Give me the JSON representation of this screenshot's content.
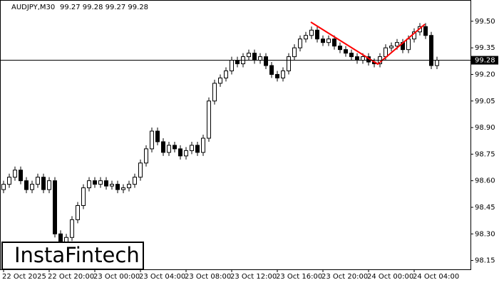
{
  "chart_data": {
    "type": "candlestick",
    "symbol": "AUDJPY,M30",
    "quote": "99.27 99.28 99.27 99.28",
    "brand": "InstaFintech",
    "categories": [
      "22 Oct 2025",
      null,
      null,
      null,
      null,
      null,
      null,
      null,
      "22 Oct 20:00",
      null,
      null,
      null,
      null,
      null,
      null,
      null,
      "23 Oct 00:00",
      null,
      null,
      null,
      null,
      null,
      null,
      null,
      "23 Oct 04:00",
      null,
      null,
      null,
      null,
      null,
      null,
      null,
      "23 Oct 08:00",
      null,
      null,
      null,
      null,
      null,
      null,
      null,
      "23 Oct 12:00",
      null,
      null,
      null,
      null,
      null,
      null,
      null,
      "23 Oct 16:00",
      null,
      null,
      null,
      null,
      null,
      null,
      null,
      "23 Oct 20:00",
      null,
      null,
      null,
      null,
      null,
      null,
      null,
      "24 Oct 00:00",
      null,
      null,
      null,
      null,
      null,
      null,
      null,
      "24 Oct 04:00",
      null,
      null,
      null,
      null
    ],
    "open": [
      98.55,
      98.58,
      98.62,
      98.66,
      98.6,
      98.55,
      98.58,
      98.62,
      98.55,
      98.6,
      98.3,
      98.22,
      98.28,
      98.38,
      98.46,
      98.56,
      98.6,
      98.58,
      98.6,
      98.57,
      98.58,
      98.55,
      98.56,
      98.58,
      98.62,
      98.7,
      98.78,
      98.88,
      98.82,
      98.76,
      98.8,
      98.78,
      98.74,
      98.77,
      98.8,
      98.76,
      98.84,
      99.05,
      99.15,
      99.18,
      99.22,
      99.28,
      99.26,
      99.3,
      99.32,
      99.28,
      99.3,
      99.25,
      99.2,
      99.18,
      99.22,
      99.3,
      99.35,
      99.4,
      99.42,
      99.45,
      99.4,
      99.38,
      99.4,
      99.36,
      99.34,
      99.32,
      99.3,
      99.28,
      99.3,
      99.27,
      99.26,
      99.3,
      99.35,
      99.36,
      99.38,
      99.34,
      99.4,
      99.44,
      99.47,
      99.42,
      99.25
    ],
    "high": [
      98.6,
      98.64,
      98.68,
      98.68,
      98.62,
      98.6,
      98.64,
      98.64,
      98.62,
      98.62,
      98.32,
      98.3,
      98.4,
      98.48,
      98.58,
      98.62,
      98.62,
      98.62,
      98.62,
      98.6,
      98.6,
      98.58,
      98.6,
      98.64,
      98.72,
      98.8,
      98.9,
      98.9,
      98.84,
      98.82,
      98.82,
      98.8,
      98.79,
      98.82,
      98.82,
      98.86,
      99.07,
      99.17,
      99.2,
      99.24,
      99.3,
      99.3,
      99.32,
      99.34,
      99.34,
      99.32,
      99.32,
      99.27,
      99.22,
      99.24,
      99.32,
      99.37,
      99.42,
      99.44,
      99.47,
      99.47,
      99.42,
      99.42,
      99.42,
      99.38,
      99.36,
      99.34,
      99.32,
      99.32,
      99.32,
      99.29,
      99.32,
      99.37,
      99.38,
      99.4,
      99.4,
      99.42,
      99.46,
      99.49,
      99.49,
      99.44,
      99.3
    ],
    "low": [
      98.53,
      98.56,
      98.6,
      98.58,
      98.53,
      98.53,
      98.56,
      98.53,
      98.53,
      98.28,
      98.2,
      98.2,
      98.26,
      98.36,
      98.44,
      98.54,
      98.56,
      98.56,
      98.55,
      98.55,
      98.53,
      98.53,
      98.54,
      98.56,
      98.6,
      98.68,
      98.76,
      98.8,
      98.74,
      98.74,
      98.76,
      98.72,
      98.72,
      98.75,
      98.74,
      98.74,
      98.82,
      99.03,
      99.13,
      99.16,
      99.2,
      99.24,
      99.24,
      99.28,
      99.26,
      99.26,
      99.23,
      99.18,
      99.16,
      99.16,
      99.2,
      99.28,
      99.33,
      99.38,
      99.4,
      99.38,
      99.36,
      99.36,
      99.34,
      99.32,
      99.3,
      99.28,
      99.26,
      99.26,
      99.25,
      99.24,
      99.24,
      99.28,
      99.33,
      99.34,
      99.32,
      99.32,
      99.38,
      99.42,
      99.4,
      99.23,
      99.23
    ],
    "close": [
      98.58,
      98.62,
      98.66,
      98.6,
      98.55,
      98.58,
      98.62,
      98.55,
      98.6,
      98.3,
      98.22,
      98.28,
      98.38,
      98.46,
      98.56,
      98.6,
      98.58,
      98.6,
      98.57,
      98.58,
      98.55,
      98.56,
      98.58,
      98.62,
      98.7,
      98.78,
      98.88,
      98.82,
      98.76,
      98.8,
      98.78,
      98.74,
      98.77,
      98.8,
      98.76,
      98.84,
      99.05,
      99.15,
      99.18,
      99.22,
      99.28,
      99.26,
      99.3,
      99.32,
      99.28,
      99.3,
      99.25,
      99.2,
      99.18,
      99.22,
      99.3,
      99.35,
      99.4,
      99.42,
      99.45,
      99.4,
      99.38,
      99.4,
      99.36,
      99.34,
      99.32,
      99.3,
      99.28,
      99.3,
      99.27,
      99.26,
      99.3,
      99.35,
      99.36,
      99.38,
      99.34,
      99.4,
      99.44,
      99.47,
      99.42,
      99.25,
      99.28
    ],
    "last_price": {
      "value": 99.28,
      "label": "99.28"
    },
    "up_color": "#ffffff",
    "down_color": "#000000",
    "pattern_color": "#ff0000",
    "ylim": [
      98.1,
      99.62
    ],
    "yticks": [
      {
        "value": 98.15,
        "label": "98.15"
      },
      {
        "value": 98.3,
        "label": "98.30"
      },
      {
        "value": 98.45,
        "label": "98.45"
      },
      {
        "value": 98.6,
        "label": "98.60"
      },
      {
        "value": 98.75,
        "label": "98.75"
      },
      {
        "value": 98.9,
        "label": "98.90"
      },
      {
        "value": 99.05,
        "label": "99.05"
      },
      {
        "value": 99.2,
        "label": "99.20"
      },
      {
        "value": 99.35,
        "label": "99.35"
      },
      {
        "value": 99.5,
        "label": "99.50"
      }
    ]
  }
}
